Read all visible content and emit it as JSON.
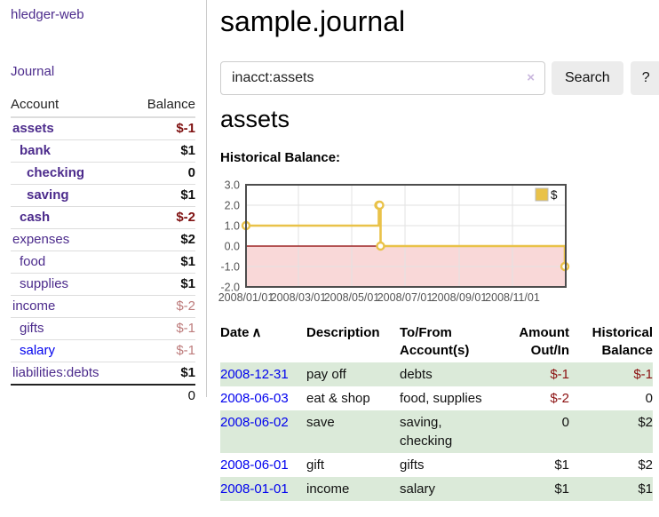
{
  "app": {
    "title": "hledger-web",
    "nav_journal": "Journal"
  },
  "sidebar": {
    "col_account": "Account",
    "col_balance": "Balance",
    "accounts": [
      {
        "name": "assets",
        "level": 1,
        "balance": "$-1",
        "in_acct": true,
        "link_color": "purple"
      },
      {
        "name": "bank",
        "level": 2,
        "balance": "$1",
        "in_acct": true,
        "link_color": "purple"
      },
      {
        "name": "checking",
        "level": 3,
        "balance": "0",
        "in_acct": true,
        "link_color": "purple"
      },
      {
        "name": "saving",
        "level": 3,
        "balance": "$1",
        "in_acct": true,
        "link_color": "purple"
      },
      {
        "name": "cash",
        "level": 2,
        "balance": "$-2",
        "in_acct": true,
        "link_color": "purple"
      },
      {
        "name": "expenses",
        "level": 1,
        "balance": "$2",
        "in_acct": false,
        "link_color": "purple"
      },
      {
        "name": "food",
        "level": 2,
        "balance": "$1",
        "in_acct": false,
        "link_color": "purple"
      },
      {
        "name": "supplies",
        "level": 2,
        "balance": "$1",
        "in_acct": false,
        "link_color": "purple"
      },
      {
        "name": "income",
        "level": 1,
        "balance": "$-2",
        "in_acct": false,
        "link_color": "purple"
      },
      {
        "name": "gifts",
        "level": 2,
        "balance": "$-1",
        "in_acct": false,
        "link_color": "purple"
      },
      {
        "name": "salary",
        "level": 2,
        "balance": "$-1",
        "in_acct": false,
        "link_color": "blue"
      },
      {
        "name": "liabilities:debts",
        "level": 1,
        "balance": "$1",
        "in_acct": false,
        "link_color": "purple"
      }
    ],
    "total": "0"
  },
  "header": {
    "title": "sample.journal"
  },
  "search": {
    "value": "inacct:assets",
    "clear_icon": "×",
    "button_label": "Search",
    "help_label": "?"
  },
  "account_page": {
    "title": "assets",
    "chart_label": "Historical Balance:"
  },
  "chart_data": {
    "type": "line",
    "title": "Historical Balance:",
    "step": true,
    "series": [
      {
        "name": "$",
        "color": "#e9c249",
        "points": [
          [
            "2008-01-01",
            1
          ],
          [
            "2008-06-01",
            2
          ],
          [
            "2008-06-02",
            2
          ],
          [
            "2008-06-03",
            0
          ],
          [
            "2008-12-31",
            -1
          ]
        ]
      }
    ],
    "xlim": [
      "2008-01-01",
      "2009-01-01"
    ],
    "ylim": [
      -2,
      3
    ],
    "yticks": [
      3.0,
      2.0,
      1.0,
      0.0,
      -1.0,
      -2.0
    ],
    "grid_dates": [
      "2008-01-01",
      "2008-03-01",
      "2008-05-01",
      "2008-07-01",
      "2008-09-01",
      "2008-11-01",
      "2009-01-01"
    ],
    "xtick_labels": [
      "2008/01/01",
      "2008/03/01",
      "2008/05/01",
      "2008/07/01",
      "2008/09/01",
      "2008/11/01"
    ],
    "grid_color": "#e2e2e2",
    "border_color": "#4d4d4d",
    "tick_label_color": "#545454",
    "negative_region_fill": "#f9d8d8",
    "zero_line_color": "#8b0000",
    "legend_position": "top-right",
    "legend_label": "$"
  },
  "register": {
    "columns": [
      "Date",
      "Description",
      "To/From Account(s)",
      "Amount Out/In",
      "Historical Balance"
    ],
    "sort_caret": "∧",
    "rows": [
      {
        "date": "2008-12-31",
        "description": "pay off",
        "accounts": "debts",
        "amount": "$-1",
        "balance": "$-1"
      },
      {
        "date": "2008-06-03",
        "description": "eat & shop",
        "accounts": "food, supplies",
        "amount": "$-2",
        "balance": "0"
      },
      {
        "date": "2008-06-02",
        "description": "save",
        "accounts": "saving, checking",
        "amount": "0",
        "balance": "$2"
      },
      {
        "date": "2008-06-01",
        "description": "gift",
        "accounts": "gifts",
        "amount": "$1",
        "balance": "$2"
      },
      {
        "date": "2008-01-01",
        "description": "income",
        "accounts": "salary",
        "amount": "$1",
        "balance": "$1"
      }
    ]
  }
}
